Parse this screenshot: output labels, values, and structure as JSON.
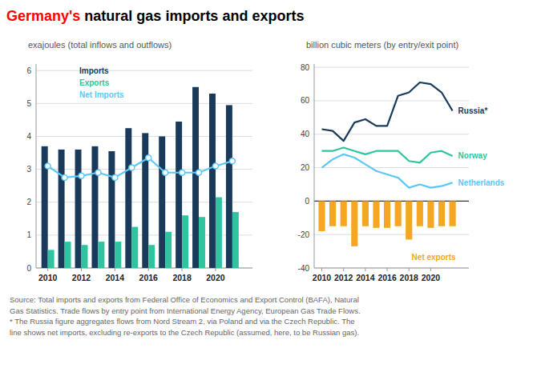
{
  "title_parts": [
    {
      "text": "Germany's",
      "color": "red"
    },
    {
      "text": " natural gas imports and exports",
      "color": "#000000"
    }
  ],
  "source": [
    "Source: Total imports and exports from Federal Office of Economics and Export Control (BAFA), Natural",
    "Gas Statistics. Trade flows by entry point from International Energy Agency, European Gas Trade Flows.",
    "* The Russia figure aggregates flows from Nord Stream 2, via Poland and via the Czech Republic. The",
    "line shows net imports, excluding re-exports to the Czech Republic (assumed, here, to be Russian gas)."
  ],
  "chart_data": [
    {
      "type": "bar",
      "subtitle": "exajoules (total inflows and outflows)",
      "x": [
        2010,
        2011,
        2012,
        2013,
        2014,
        2015,
        2016,
        2017,
        2018,
        2019,
        2020,
        2021
      ],
      "xlim": [
        2009.3,
        2022.2
      ],
      "xticks": [
        2010,
        2012,
        2014,
        2016,
        2018,
        2020
      ],
      "ylim": [
        0,
        6.2
      ],
      "yticks": [
        0,
        1,
        2,
        3,
        4,
        5,
        6
      ],
      "grid": true,
      "legend": "upper left",
      "series": [
        {
          "name": "Imports",
          "color": "#1a3a5c",
          "values": [
            3.7,
            3.6,
            3.6,
            3.7,
            3.55,
            4.25,
            4.1,
            4.0,
            4.45,
            5.5,
            5.3,
            4.95
          ]
        },
        {
          "name": "Exports",
          "color": "#2ec4a0",
          "values": [
            0.55,
            0.8,
            0.7,
            0.8,
            0.8,
            1.25,
            0.7,
            1.1,
            1.6,
            1.55,
            2.15,
            1.7
          ]
        },
        {
          "name": "Net Imports",
          "type": "line",
          "marker": "circle",
          "color": "#5bc8f5",
          "values": [
            3.1,
            2.75,
            2.8,
            2.9,
            2.75,
            3.05,
            3.35,
            2.9,
            2.9,
            2.9,
            3.1,
            3.25
          ]
        }
      ]
    },
    {
      "type": "line",
      "subtitle": "billion cubic meters (by entry/exit point)",
      "x": [
        2010,
        2011,
        2012,
        2013,
        2014,
        2015,
        2016,
        2017,
        2018,
        2019,
        2020,
        2021,
        2022
      ],
      "xlim": [
        2009.3,
        2023.5
      ],
      "xticks": [
        2010,
        2012,
        2014,
        2016,
        2018,
        2020
      ],
      "ylim": [
        -40,
        82
      ],
      "yticks": [
        -40,
        -20,
        0,
        20,
        40,
        60,
        80
      ],
      "grid": true,
      "legend": "right",
      "series": [
        {
          "name": "Net exports",
          "type": "bar",
          "color": "#f5a623",
          "values": [
            -18,
            -15,
            -15,
            -27,
            -15,
            -16,
            -16,
            -15,
            -23,
            -15,
            -16,
            -15,
            -15
          ]
        },
        {
          "name": "Russia*",
          "color": "#1a3a5c",
          "values": [
            43,
            42,
            36,
            47,
            49,
            45,
            45,
            63,
            65,
            71,
            70,
            65,
            54
          ]
        },
        {
          "name": "Norway",
          "color": "#2ec4a0",
          "values": [
            30,
            30,
            32,
            30,
            28,
            30,
            30,
            30,
            24,
            23,
            29,
            30,
            27
          ]
        },
        {
          "name": "Netherlands",
          "color": "#5bc8f5",
          "values": [
            20,
            25,
            28,
            26,
            22,
            18,
            16,
            14,
            8,
            10,
            8,
            9,
            11
          ]
        }
      ]
    }
  ]
}
